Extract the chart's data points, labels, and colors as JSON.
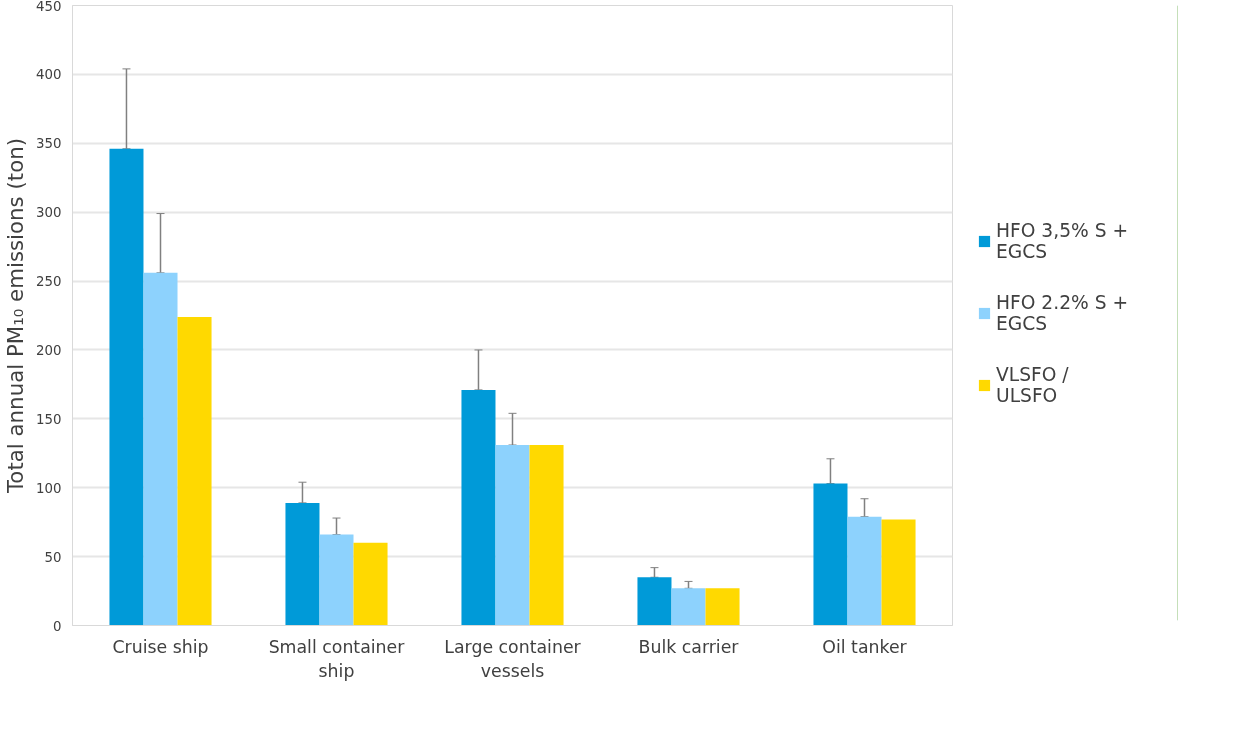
{
  "chart_data": {
    "type": "bar",
    "ylabel": "Total annual PM₁₀ emissions (ton)",
    "categories": [
      "Cruise ship",
      "Small container ship",
      "Large container vessels",
      "Bulk carrier",
      "Oil tanker"
    ],
    "series": [
      {
        "name": "HFO 3,5% S + EGCS",
        "color": "#009ad8",
        "values": [
          346,
          89,
          171,
          35,
          103
        ],
        "errors": [
          [
            346,
            404
          ],
          [
            89,
            104
          ],
          [
            171,
            200
          ],
          [
            35,
            42
          ],
          [
            103,
            121
          ]
        ]
      },
      {
        "name": "HFO 2.2% S + EGCS",
        "color": "#8dd2fd",
        "values": [
          256,
          66,
          131,
          27,
          79
        ],
        "errors": [
          [
            256,
            299
          ],
          [
            66,
            78
          ],
          [
            131,
            154
          ],
          [
            27,
            32
          ],
          [
            79,
            92
          ]
        ]
      },
      {
        "name": "VLSFO / ULSFO",
        "color": "#ffd900",
        "values": [
          224,
          60,
          131,
          27,
          77
        ]
      }
    ],
    "ylim": [
      0,
      450
    ],
    "yticks": [
      0,
      50,
      100,
      150,
      200,
      250,
      300,
      350,
      400,
      450
    ],
    "grid": "y",
    "legend": "right"
  }
}
